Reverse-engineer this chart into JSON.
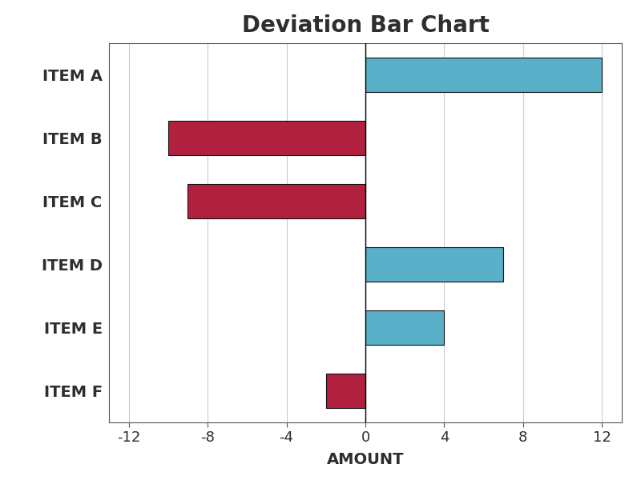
{
  "title": "Deviation Bar Chart",
  "categories": [
    "ITEM A",
    "ITEM B",
    "ITEM C",
    "ITEM D",
    "ITEM E",
    "ITEM F"
  ],
  "values": [
    12,
    -10,
    -9,
    7,
    4,
    -2
  ],
  "colors": [
    "#5aafc9",
    "#b22040",
    "#b22040",
    "#5aafc9",
    "#5aafc9",
    "#b22040"
  ],
  "xlabel": "AMOUNT",
  "xlim": [
    -13,
    13
  ],
  "xticks": [
    -12,
    -8,
    -4,
    0,
    4,
    8,
    12
  ],
  "bar_height": 0.55,
  "title_fontsize": 20,
  "label_fontsize": 14,
  "tick_fontsize": 13,
  "xlabel_fontsize": 14,
  "background_color": "#ffffff",
  "grid_color": "#cccccc",
  "edge_color": "#111111",
  "text_color": "#2e2e2e"
}
